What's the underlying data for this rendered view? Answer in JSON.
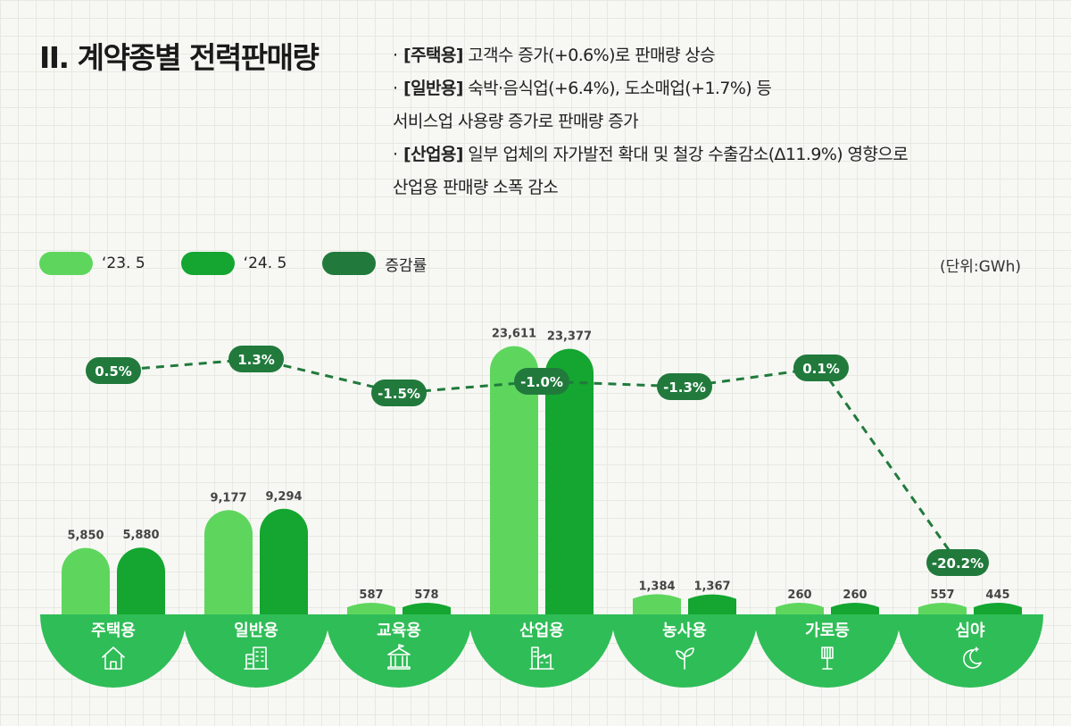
{
  "title": "II. 계약종별 전력판매량",
  "notes": [
    {
      "bullet": "·",
      "tag": "[주택용]",
      "text": " 고객수 증가(+0.6%)로 판매량 상승",
      "cont": ""
    },
    {
      "bullet": "·",
      "tag": "[일반용]",
      "text": " 숙박·음식업(+6.4%), 도소매업(+1.7%) 등",
      "cont": "서비스업 사용량 증가로 판매량 증가"
    },
    {
      "bullet": "·",
      "tag": "[산업용]",
      "text": " 일부 업체의 자가발전 확대 및 철강 수출감소(Δ11.9%) 영향으로",
      "cont": "산업용 판매량 소폭 감소"
    }
  ],
  "legend": [
    {
      "label": "‘23. 5",
      "color": "#5ed65e"
    },
    {
      "label": "‘24. 5",
      "color": "#14a630"
    },
    {
      "label": "증감률",
      "color": "#217a3c"
    }
  ],
  "unit": "(단위:GWh)",
  "colors": {
    "bar_2023": "#5ed65e",
    "bar_2024": "#14a630",
    "rate": "#217a3c",
    "base": "#2fbd57",
    "label_text": "#444444"
  },
  "chart_data": {
    "type": "bar",
    "categories": [
      "주택용",
      "일반용",
      "교육용",
      "산업용",
      "농사용",
      "가로등",
      "심야"
    ],
    "category_icons": [
      "house-icon",
      "office-building-icon",
      "school-icon",
      "factory-icon",
      "sprout-icon",
      "street-light-icon",
      "moon-icon"
    ],
    "series": [
      {
        "name": "‘23. 5",
        "values": [
          5850,
          9177,
          587,
          23611,
          1384,
          260,
          557
        ],
        "labels": [
          "5,850",
          "9,177",
          "587",
          "23,611",
          "1,384",
          "260",
          "557"
        ]
      },
      {
        "name": "‘24. 5",
        "values": [
          5880,
          9294,
          578,
          23377,
          1367,
          260,
          445
        ],
        "labels": [
          "5,880",
          "9,294",
          "578",
          "23,377",
          "1,367",
          "260",
          "445"
        ]
      }
    ],
    "line": {
      "name": "증감률",
      "values": [
        0.5,
        1.3,
        -1.5,
        -1.0,
        -1.3,
        0.1,
        -20.2
      ],
      "labels": [
        "0.5%",
        "1.3%",
        "-1.5%",
        "-1.0%",
        "-1.3%",
        "0.1%",
        "-20.2%"
      ]
    },
    "unit": "GWh"
  }
}
